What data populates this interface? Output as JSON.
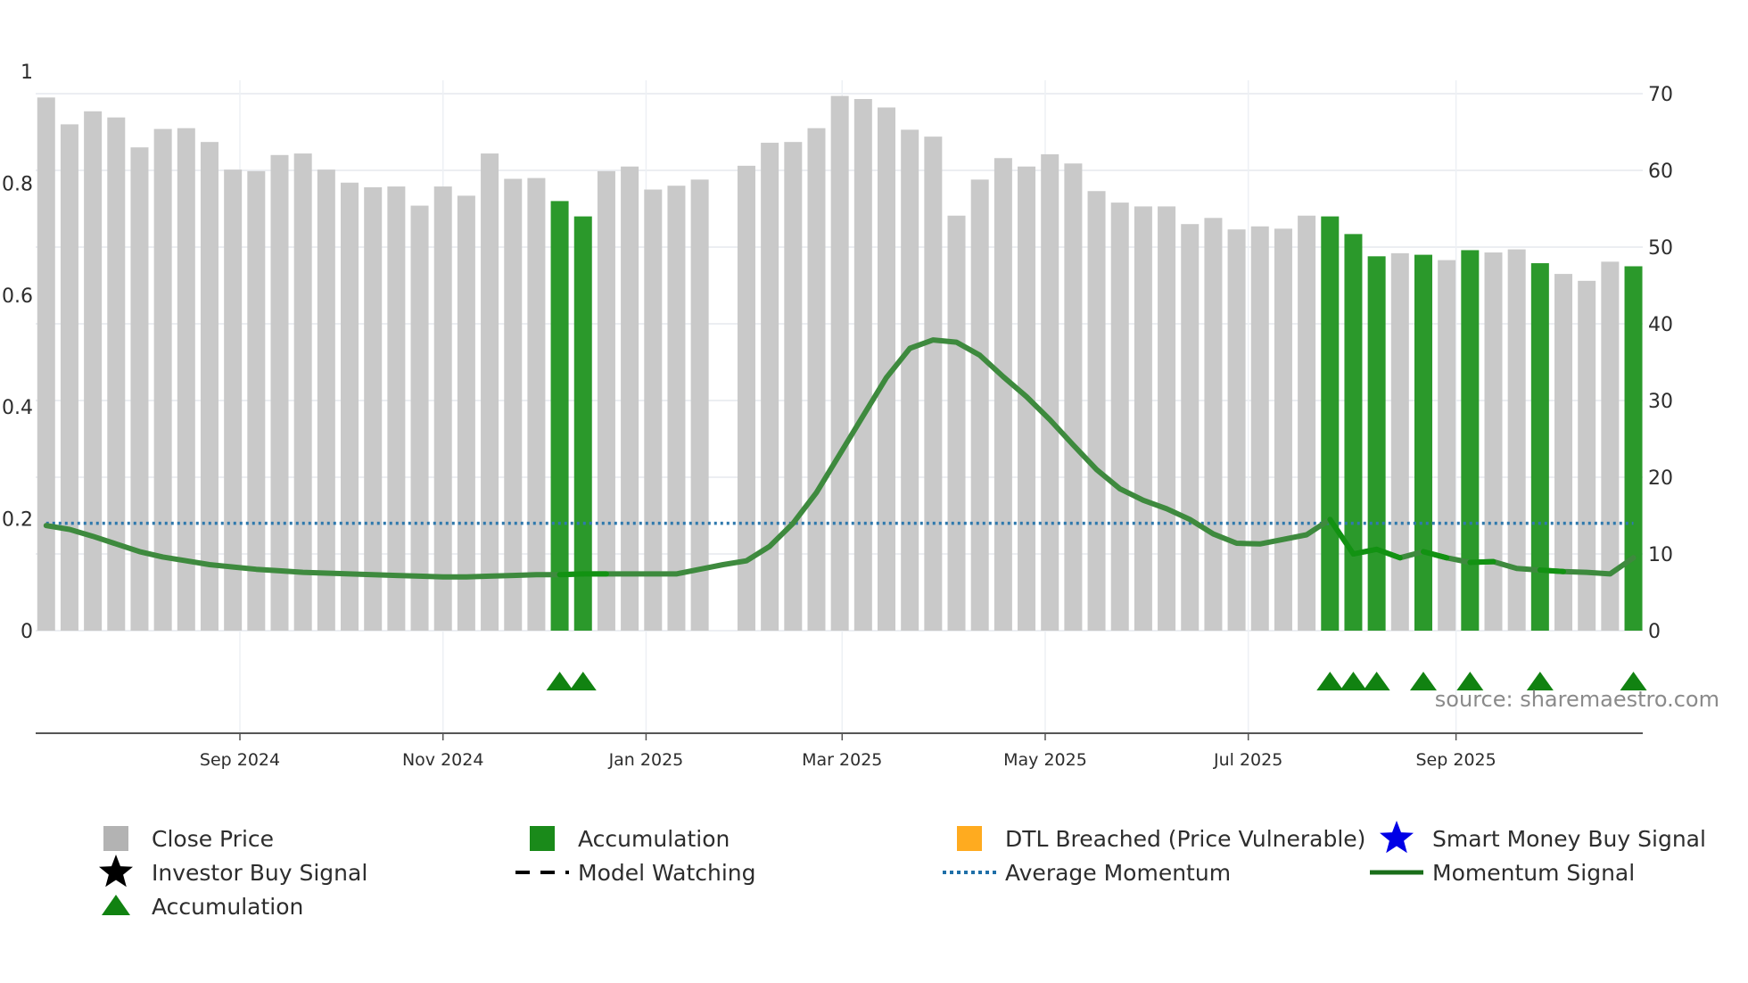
{
  "chart_data": {
    "type": "bar",
    "title": "",
    "source": "source: sharemaestro.com",
    "left_axis": {
      "ticks": [
        0,
        0.2,
        0.4,
        0.6,
        0.8,
        1
      ],
      "tick_labels": [
        "0",
        "0.2",
        "0.4",
        "0.6",
        "0.8",
        "1"
      ],
      "range": [
        0,
        1
      ]
    },
    "right_axis": {
      "ticks": [
        0,
        10,
        20,
        30,
        40,
        50,
        60,
        70
      ],
      "tick_labels": [
        "0",
        "10",
        "20",
        "30",
        "40",
        "50",
        "60",
        "70"
      ],
      "range": [
        0,
        70
      ]
    },
    "x_ticks": [
      {
        "label": "Sep 2024",
        "index": 8.3
      },
      {
        "label": "Nov 2024",
        "index": 17.0
      },
      {
        "label": "Jan 2025",
        "index": 25.7
      },
      {
        "label": "Mar 2025",
        "index": 34.1
      },
      {
        "label": "May 2025",
        "index": 42.8
      },
      {
        "label": "Jul 2025",
        "index": 51.5
      },
      {
        "label": "Sep 2025",
        "index": 60.4
      }
    ],
    "x_range": [
      -0.45,
      68.4
    ],
    "close_price": [
      69.5,
      66.0,
      67.7,
      66.9,
      63.0,
      65.4,
      65.5,
      63.7,
      60.1,
      59.9,
      62.0,
      62.2,
      60.1,
      58.4,
      57.8,
      57.9,
      55.4,
      57.9,
      56.7,
      62.2,
      58.9,
      59.0,
      56.0,
      54.0,
      59.9,
      60.5,
      57.5,
      58.0,
      58.8,
      null,
      60.6,
      63.6,
      63.7,
      65.5,
      69.7,
      69.3,
      68.2,
      65.3,
      64.4,
      54.1,
      58.8,
      61.6,
      60.5,
      62.1,
      60.9,
      57.3,
      55.8,
      55.3,
      55.3,
      53.0,
      53.8,
      52.3,
      52.7,
      52.4,
      54.1,
      54.0,
      51.7,
      48.8,
      49.2,
      49.0,
      48.3,
      49.6,
      49.3,
      49.7,
      47.9,
      46.5,
      45.6,
      48.1,
      47.5
    ],
    "accumulation_bars": [
      22,
      23,
      55,
      56,
      57,
      59,
      61,
      64,
      68
    ],
    "accumulation_markers": [
      22,
      23,
      55,
      56,
      57,
      59,
      61,
      64,
      68
    ],
    "momentum_signal": [
      13.7,
      13.2,
      12.3,
      11.3,
      10.3,
      9.6,
      9.1,
      8.6,
      8.3,
      8.0,
      7.8,
      7.6,
      7.5,
      7.4,
      7.3,
      7.2,
      7.1,
      7.0,
      7.0,
      7.1,
      7.2,
      7.3,
      7.3,
      7.4,
      7.4,
      7.4,
      7.4,
      7.4,
      8.0,
      8.6,
      9.1,
      11.0,
      14.0,
      18.0,
      23.0,
      28.0,
      33.0,
      36.8,
      37.9,
      37.6,
      35.9,
      33.1,
      30.5,
      27.5,
      24.2,
      21.0,
      18.5,
      17.0,
      15.9,
      14.5,
      12.6,
      11.4,
      11.3,
      11.9,
      12.5,
      14.5,
      10.0,
      10.6,
      9.5,
      10.3,
      9.5,
      8.9,
      9.0,
      8.1,
      7.9,
      7.7,
      7.6,
      7.4,
      9.5
    ],
    "average_momentum": 14.0,
    "legend": [
      {
        "label": "Close Price",
        "symbol": "square",
        "color": "#b3b3b3"
      },
      {
        "label": "Accumulation",
        "symbol": "square",
        "color": "#1a8a1a"
      },
      {
        "label": "DTL Breached (Price Vulnerable)",
        "symbol": "square",
        "color": "#ffab1f"
      },
      {
        "label": "Smart Money Buy Signal",
        "symbol": "star",
        "color": "#0000e6"
      },
      {
        "label": "Investor Buy Signal",
        "symbol": "star",
        "color": "#000000"
      },
      {
        "label": "Model Watching",
        "symbol": "dashed-line",
        "color": "#000000"
      },
      {
        "label": "Average Momentum",
        "symbol": "dotted-line",
        "color": "#1f6fa8"
      },
      {
        "label": "Momentum Signal",
        "symbol": "solid-line",
        "color": "#1a6e1a"
      },
      {
        "label": "Accumulation",
        "symbol": "triangle",
        "color": "#118211"
      }
    ],
    "colors": {
      "close_price": "#c9c9c9",
      "accumulation_bar": "#2b992b",
      "momentum": "#3e8a3e",
      "momentum_bright": "#129212",
      "average_momentum": "#2f79ad",
      "accumulation_marker": "#118211"
    }
  }
}
